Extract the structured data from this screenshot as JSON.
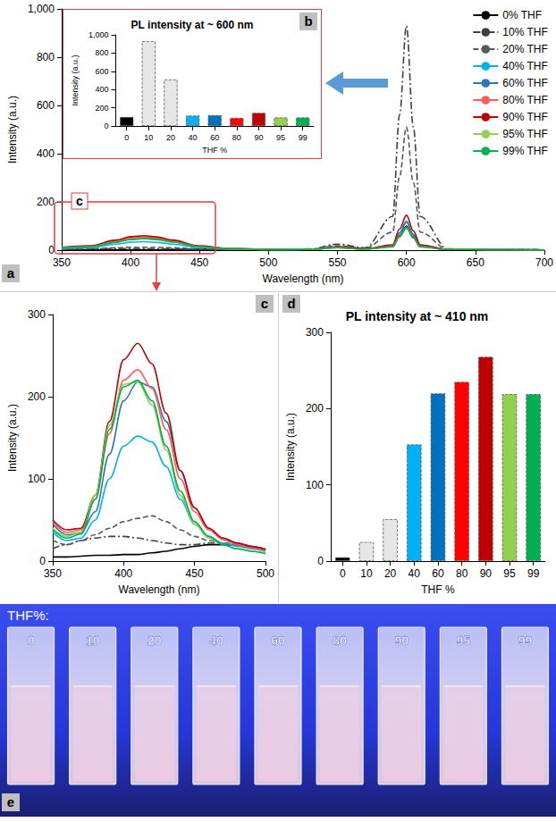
{
  "chart_data": [
    {
      "type": "line",
      "letter": "a",
      "annotation": "c",
      "xlabel": "Wavelength (nm)",
      "ylabel": "Intensity (a.u.)",
      "x": [
        350,
        370,
        390,
        400,
        410,
        420,
        430,
        450,
        470,
        500,
        530,
        550,
        570,
        590,
        595,
        600,
        605,
        610,
        630,
        660,
        700
      ],
      "xlim": [
        350,
        700
      ],
      "xticks": [
        350,
        400,
        450,
        500,
        550,
        600,
        650,
        700
      ],
      "ylim": [
        0,
        1000
      ],
      "yticks": [
        0,
        200,
        400,
        600,
        800,
        1000
      ],
      "grid": false,
      "legend": "upper right",
      "series": [
        {
          "name": "0% THF",
          "color": "#000000",
          "line_style": "solid",
          "values": [
            2,
            2,
            2,
            2,
            2,
            2,
            3,
            4,
            4,
            3,
            3,
            10,
            5,
            15,
            60,
            100,
            55,
            15,
            3,
            2,
            1
          ]
        },
        {
          "name": "10% THF",
          "color": "#404040",
          "line_style": "dash-dot",
          "values": [
            3,
            5,
            6,
            6,
            6,
            5,
            5,
            4,
            4,
            3,
            5,
            25,
            10,
            140,
            560,
            930,
            510,
            140,
            5,
            3,
            2
          ]
        },
        {
          "name": "20% THF",
          "color": "#595959",
          "line_style": "dashed",
          "values": [
            4,
            6,
            10,
            12,
            12,
            12,
            10,
            6,
            4,
            3,
            4,
            18,
            8,
            75,
            305,
            510,
            280,
            75,
            4,
            2,
            1
          ]
        },
        {
          "name": "40% THF",
          "color": "#00b0f0",
          "line_style": "solid",
          "values": [
            7,
            10,
            25,
            33,
            35,
            32,
            25,
            11,
            5,
            2,
            3,
            12,
            5,
            17,
            70,
            115,
            63,
            17,
            3,
            2,
            1
          ]
        },
        {
          "name": "60% THF",
          "color": "#2e75b6",
          "line_style": "solid",
          "values": [
            10,
            15,
            35,
            46,
            50,
            46,
            35,
            15,
            6,
            3,
            3,
            13,
            5,
            18,
            72,
            120,
            66,
            18,
            3,
            2,
            1
          ]
        },
        {
          "name": "80% THF",
          "color": "#ff5b5b",
          "line_style": "solid",
          "values": [
            11,
            16,
            38,
            51,
            55,
            50,
            38,
            16,
            7,
            3,
            3,
            11,
            4,
            14,
            54,
            90,
            50,
            14,
            3,
            2,
            1
          ]
        },
        {
          "name": "90% THF",
          "color": "#c00000",
          "line_style": "solid",
          "values": [
            12,
            18,
            42,
            56,
            60,
            54,
            42,
            18,
            7,
            3,
            3,
            15,
            6,
            22,
            87,
            145,
            80,
            22,
            3,
            2,
            1
          ]
        },
        {
          "name": "95% THF",
          "color": "#92d050",
          "line_style": "solid",
          "values": [
            10,
            14,
            34,
            45,
            48,
            43,
            34,
            14,
            6,
            2,
            3,
            11,
            4,
            14,
            57,
            95,
            52,
            14,
            3,
            2,
            1
          ]
        },
        {
          "name": "99% THF",
          "color": "#00b050",
          "line_style": "solid",
          "values": [
            9,
            14,
            33,
            44,
            48,
            44,
            34,
            15,
            6,
            2,
            3,
            11,
            4,
            14,
            57,
            95,
            52,
            14,
            3,
            2,
            1
          ]
        }
      ]
    },
    {
      "type": "bar",
      "letter": "b",
      "title": "PL intensity at ~ 600 nm",
      "xlabel": "THF %",
      "ylabel": "Intensity (a.u.)",
      "categories": [
        "0",
        "10",
        "20",
        "40",
        "60",
        "80",
        "90",
        "95",
        "99"
      ],
      "values": [
        100,
        930,
        510,
        115,
        120,
        90,
        145,
        95,
        95
      ],
      "colors": [
        "#000000",
        "#e7e6e6",
        "#e7e6e6",
        "#00b0f0",
        "#0070c0",
        "#ff0000",
        "#c00000",
        "#92d050",
        "#00b050"
      ],
      "ylim": [
        0,
        1000
      ],
      "yticks": [
        0,
        200,
        400,
        600,
        800,
        1000
      ],
      "grid": false
    },
    {
      "type": "line",
      "letter": "c",
      "xlabel": "Wavelength (nm)",
      "ylabel": "Intensity (a.u.)",
      "x": [
        350,
        360,
        370,
        380,
        390,
        400,
        410,
        420,
        430,
        440,
        450,
        460,
        470,
        480,
        490,
        500
      ],
      "xlim": [
        350,
        500
      ],
      "xticks": [
        350,
        400,
        450,
        500
      ],
      "ylim": [
        0,
        300
      ],
      "yticks": [
        0,
        100,
        200,
        300
      ],
      "grid": false,
      "series": [
        {
          "color": "#000000",
          "line_style": "solid",
          "values": [
            5,
            5,
            6,
            7,
            7,
            8,
            8,
            10,
            12,
            15,
            18,
            20,
            20,
            19,
            17,
            14
          ]
        },
        {
          "color": "#404040",
          "line_style": "dash-dot",
          "values": [
            15,
            20,
            25,
            28,
            30,
            30,
            28,
            25,
            22,
            20,
            20,
            22,
            22,
            20,
            18,
            15
          ]
        },
        {
          "color": "#595959",
          "line_style": "dashed",
          "values": [
            25,
            20,
            25,
            32,
            40,
            48,
            52,
            55,
            48,
            38,
            30,
            25,
            22,
            20,
            17,
            14
          ]
        },
        {
          "color": "#00b0f0",
          "line_style": "solid",
          "values": [
            35,
            25,
            28,
            50,
            100,
            140,
            152,
            145,
            115,
            75,
            45,
            30,
            22,
            18,
            15,
            12
          ]
        },
        {
          "color": "#2e75b6",
          "line_style": "solid",
          "values": [
            45,
            32,
            35,
            60,
            130,
            195,
            218,
            212,
            170,
            110,
            65,
            40,
            28,
            22,
            18,
            14
          ]
        },
        {
          "color": "#ff5b5b",
          "line_style": "solid",
          "values": [
            48,
            35,
            38,
            75,
            155,
            220,
            233,
            210,
            160,
            100,
            60,
            38,
            26,
            20,
            16,
            13
          ]
        },
        {
          "color": "#c00000",
          "line_style": "solid",
          "values": [
            50,
            38,
            40,
            80,
            170,
            245,
            265,
            240,
            180,
            110,
            65,
            40,
            28,
            22,
            18,
            14
          ]
        },
        {
          "color": "#92d050",
          "line_style": "solid",
          "values": [
            40,
            30,
            35,
            80,
            165,
            215,
            218,
            190,
            135,
            80,
            45,
            28,
            20,
            15,
            12,
            10
          ]
        },
        {
          "color": "#00b050",
          "line_style": "solid",
          "values": [
            38,
            28,
            33,
            75,
            160,
            212,
            220,
            195,
            140,
            85,
            48,
            30,
            20,
            15,
            12,
            9
          ]
        }
      ]
    },
    {
      "type": "bar",
      "letter": "d",
      "title": "PL intensity at ~ 410 nm",
      "xlabel": "THF %",
      "ylabel": "Intensity (a.u.)",
      "categories": [
        "0",
        "10",
        "20",
        "40",
        "60",
        "80",
        "90",
        "95",
        "99"
      ],
      "values": [
        5,
        25,
        55,
        153,
        220,
        235,
        268,
        219,
        219
      ],
      "colors": [
        "#000000",
        "#e7e6e6",
        "#e7e6e6",
        "#00b0f0",
        "#0070c0",
        "#ff0000",
        "#c00000",
        "#92d050",
        "#00b050"
      ],
      "ylim": [
        0,
        300
      ],
      "yticks": [
        0,
        100,
        200,
        300
      ],
      "grid": false
    }
  ],
  "photo": {
    "letter": "e",
    "label": "THF%:",
    "samples": [
      "0",
      "10",
      "20",
      "40",
      "60",
      "80",
      "90",
      "95",
      "99"
    ]
  }
}
